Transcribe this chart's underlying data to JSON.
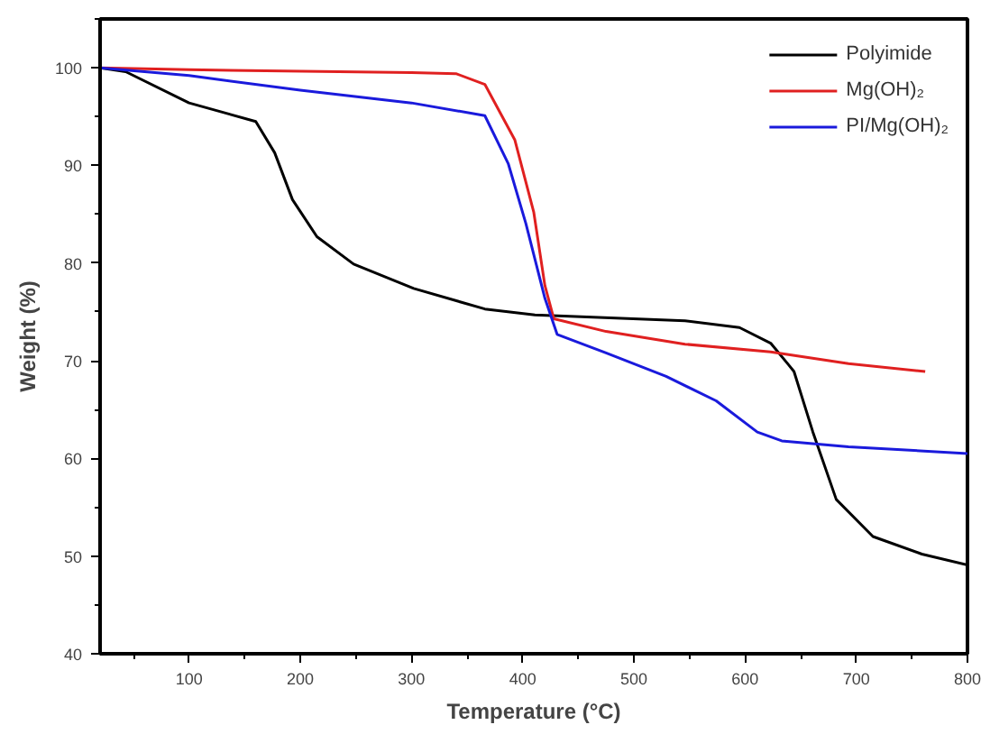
{
  "chart_data": {
    "type": "line",
    "xlabel": "Temperature (°C)",
    "ylabel": "Weight (%)",
    "xlim": [
      20,
      800
    ],
    "xticks": [
      100,
      200,
      300,
      400,
      500,
      600,
      700,
      800
    ],
    "ylim": [
      40,
      105
    ],
    "yticks": [
      40,
      50,
      60,
      70,
      80,
      90,
      100
    ],
    "grid": false,
    "legend": "top right",
    "line_style": "solid",
    "marker": "none",
    "series": [
      {
        "name": "Polyimide",
        "color": "#000000",
        "x": [
          20,
          43,
          100,
          160,
          177,
          193,
          215,
          248,
          302,
          366,
          411,
          546,
          595,
          623,
          639,
          644,
          661,
          682,
          715,
          759,
          800
        ],
        "values": [
          100,
          99.6,
          96.4,
          94.5,
          91.3,
          86.5,
          82.7,
          79.9,
          77.4,
          75.3,
          74.7,
          74.1,
          73.4,
          71.8,
          69.6,
          68.9,
          62.7,
          55.8,
          52.0,
          50.2,
          49.1
        ]
      },
      {
        "name": "Mg(OH)₂",
        "color": "#e02020",
        "x": [
          20,
          100,
          300,
          340,
          366,
          393,
          410,
          420,
          428,
          475,
          546,
          623,
          693,
          762
        ],
        "values": [
          100,
          99.8,
          99.5,
          99.4,
          98.3,
          92.6,
          85.2,
          77.7,
          74.3,
          73.0,
          71.7,
          70.9,
          69.7,
          68.9
        ]
      },
      {
        "name": "PI/Mg(OH)₂",
        "color": "#1a1adc",
        "x": [
          20,
          100,
          200,
          300,
          366,
          387,
          403,
          420,
          431,
          475,
          529,
          574,
          611,
          633,
          693,
          800
        ],
        "values": [
          100,
          99.2,
          97.7,
          96.4,
          95.1,
          90.2,
          84.0,
          76.4,
          72.7,
          70.8,
          68.4,
          65.9,
          62.7,
          61.8,
          61.2,
          60.5
        ]
      }
    ]
  }
}
